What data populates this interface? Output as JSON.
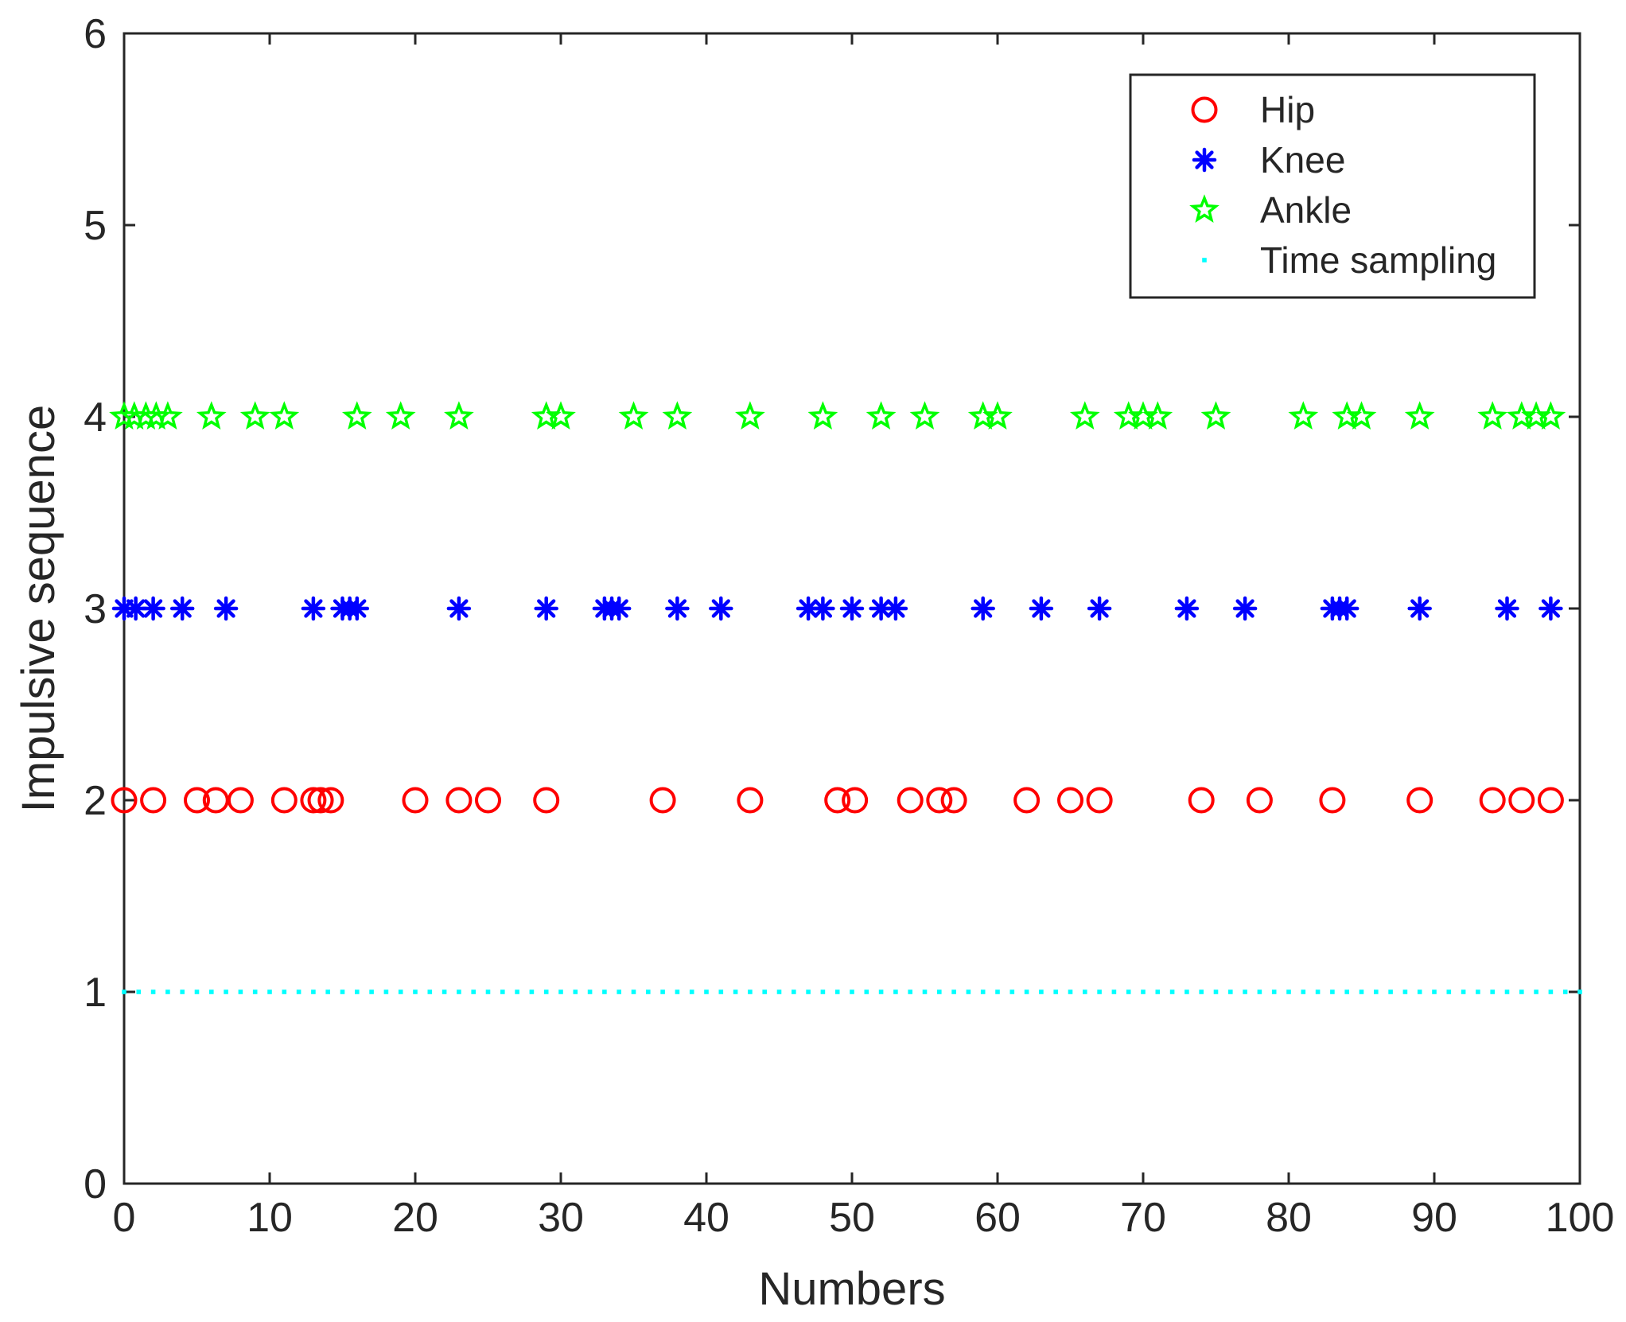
{
  "chart_data": {
    "type": "scatter",
    "title": "",
    "xlabel": "Numbers",
    "ylabel": "Impulsive sequence",
    "xlim": [
      0,
      100
    ],
    "ylim": [
      0,
      6
    ],
    "xticks": [
      "0",
      "10",
      "20",
      "30",
      "40",
      "50",
      "60",
      "70",
      "80",
      "90",
      "100"
    ],
    "yticks": [
      "0",
      "1",
      "2",
      "3",
      "4",
      "5",
      "6"
    ],
    "grid": false,
    "legend_position": "top-right",
    "series": [
      {
        "name": "Hip",
        "marker": "circle",
        "color": "#ff0000",
        "y": 2,
        "x": [
          0,
          2,
          5,
          6.3,
          8,
          11,
          13,
          13.5,
          14.2,
          20,
          23,
          25,
          29,
          37,
          43,
          49,
          50.2,
          54,
          56,
          57,
          62,
          65,
          67,
          74,
          78,
          83,
          89,
          94,
          96,
          98
        ]
      },
      {
        "name": "Knee",
        "marker": "asterisk",
        "color": "#0000ff",
        "y": 3,
        "x": [
          0,
          0.8,
          2,
          4,
          7,
          13,
          15,
          15.5,
          16,
          23,
          29,
          33,
          33.5,
          34,
          38,
          41,
          47,
          48,
          50,
          52,
          53,
          59,
          63,
          67,
          73,
          77,
          83,
          83.5,
          84,
          89,
          95,
          98
        ]
      },
      {
        "name": "Ankle",
        "marker": "pentagram",
        "color": "#00ff00",
        "y": 4,
        "x": [
          0,
          0.7,
          1.5,
          2.2,
          3,
          6,
          9,
          11,
          16,
          19,
          23,
          29,
          30,
          35,
          38,
          43,
          48,
          52,
          55,
          59,
          60,
          66,
          69,
          70,
          71,
          75,
          81,
          84,
          85,
          89,
          94,
          96,
          97,
          98
        ]
      },
      {
        "name": "Time sampling",
        "marker": "point",
        "color": "#00ffff",
        "y": 1,
        "x_range": [
          0,
          100
        ],
        "x_step": 1
      }
    ]
  }
}
